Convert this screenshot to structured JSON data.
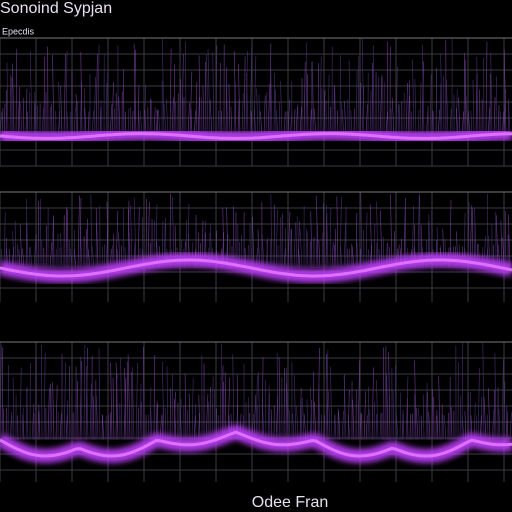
{
  "header": {
    "title": "Sonoind Sypjan",
    "label": "Epecdis"
  },
  "footer": {
    "text": "Odee Fran"
  }
}
